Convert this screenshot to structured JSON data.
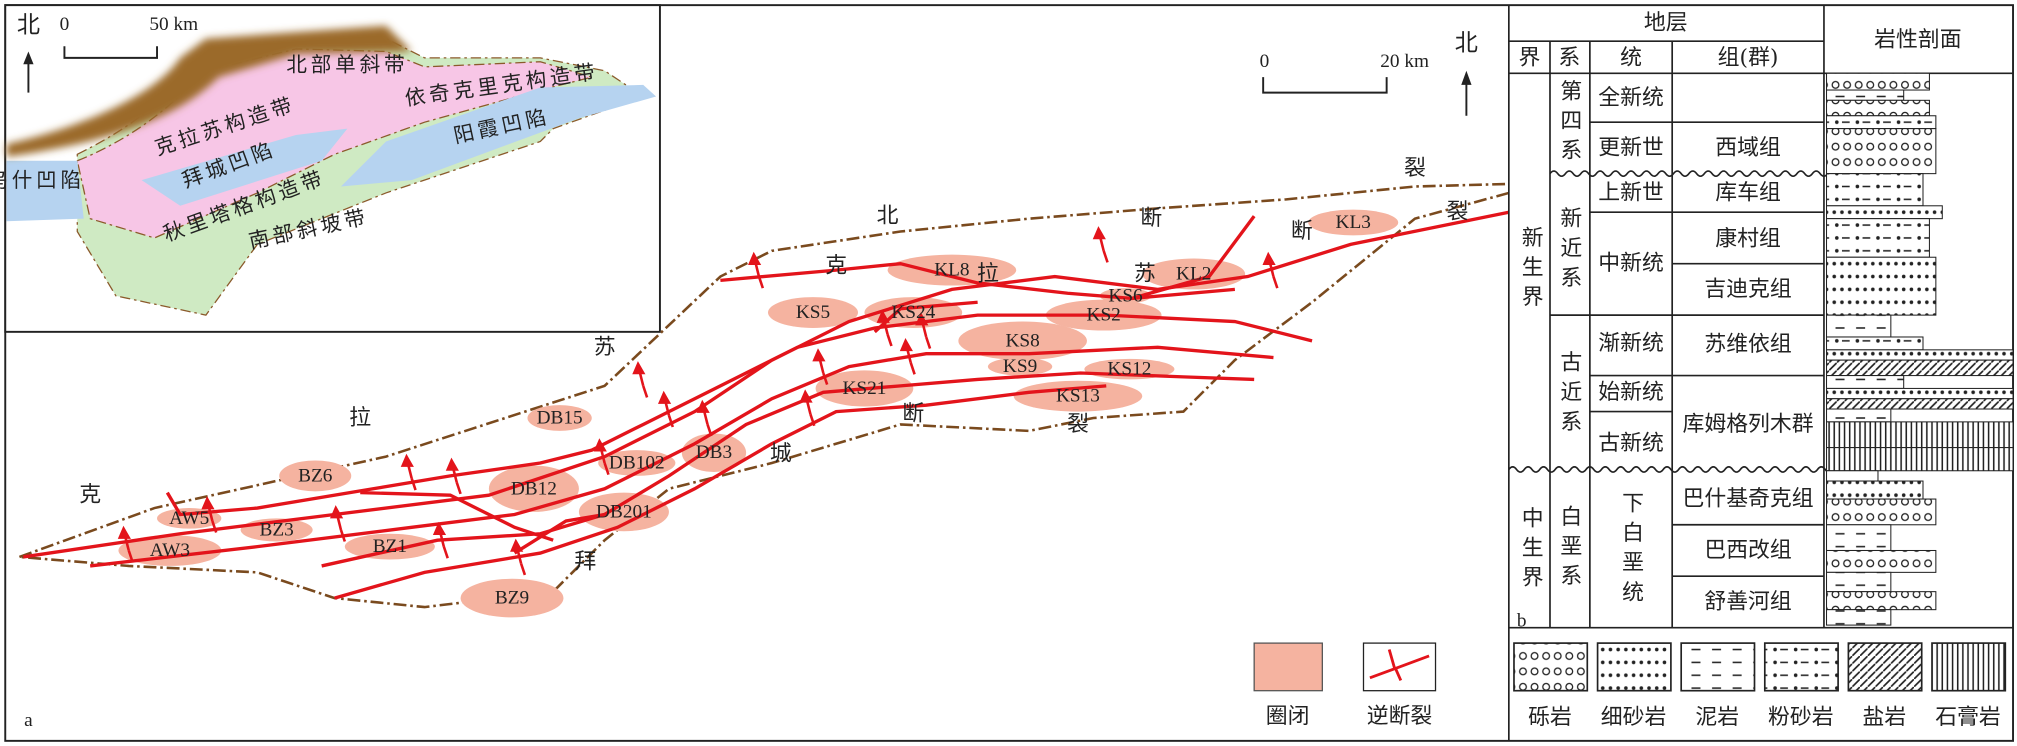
{
  "inset_map": {
    "north": "北",
    "scale_zero": "0",
    "scale_label": "50 km",
    "zones": [
      "北部单斜带",
      "依奇克里克构造带",
      "克拉苏构造带",
      "阳霞凹陷",
      "乌什凹陷",
      "拜城凹陷",
      "秋里塔格构造带",
      "南部斜坡带"
    ]
  },
  "main_map": {
    "north": "北",
    "scale_zero": "0",
    "scale_label": "20 km",
    "fault_labels": [
      "北",
      "断",
      "裂",
      "克",
      "拉",
      "苏",
      "断",
      "裂",
      "苏",
      "拉",
      "克",
      "拜",
      "城",
      "断",
      "裂"
    ],
    "closures": [
      "KL3",
      "KL8",
      "KL2",
      "KS6",
      "KS5",
      "KS24",
      "KS2",
      "KS8",
      "KS9",
      "KS12",
      "KS13",
      "KS21",
      "DB15",
      "DB102",
      "DB3",
      "DB12",
      "DB201",
      "BZ6",
      "AW5",
      "AW3",
      "BZ3",
      "BZ1",
      "BZ9"
    ],
    "panel_label": "a"
  },
  "legend": {
    "closure": "圈闭",
    "reverse_fault": "逆断裂"
  },
  "stratigraphy": {
    "cells": [
      "地层",
      "界",
      "系",
      "统",
      "组(群)",
      "岩性剖面",
      "新生界",
      "第四系",
      "全新统",
      "更新世",
      "西域组",
      "新近系",
      "上新世",
      "库车组",
      "中新统",
      "康村组",
      "吉迪克组",
      "古近系",
      "渐新统",
      "苏维依组",
      "始新统",
      "古新统",
      "库姆格列木群",
      "中生界",
      "白垩系",
      "下白垩统",
      "巴什基奇克组",
      "巴西改组",
      "舒善河组",
      "b"
    ],
    "lithologies": [
      "砾岩",
      "细砂岩",
      "泥岩",
      "粉砂岩",
      "盐岩",
      "石膏岩"
    ]
  }
}
